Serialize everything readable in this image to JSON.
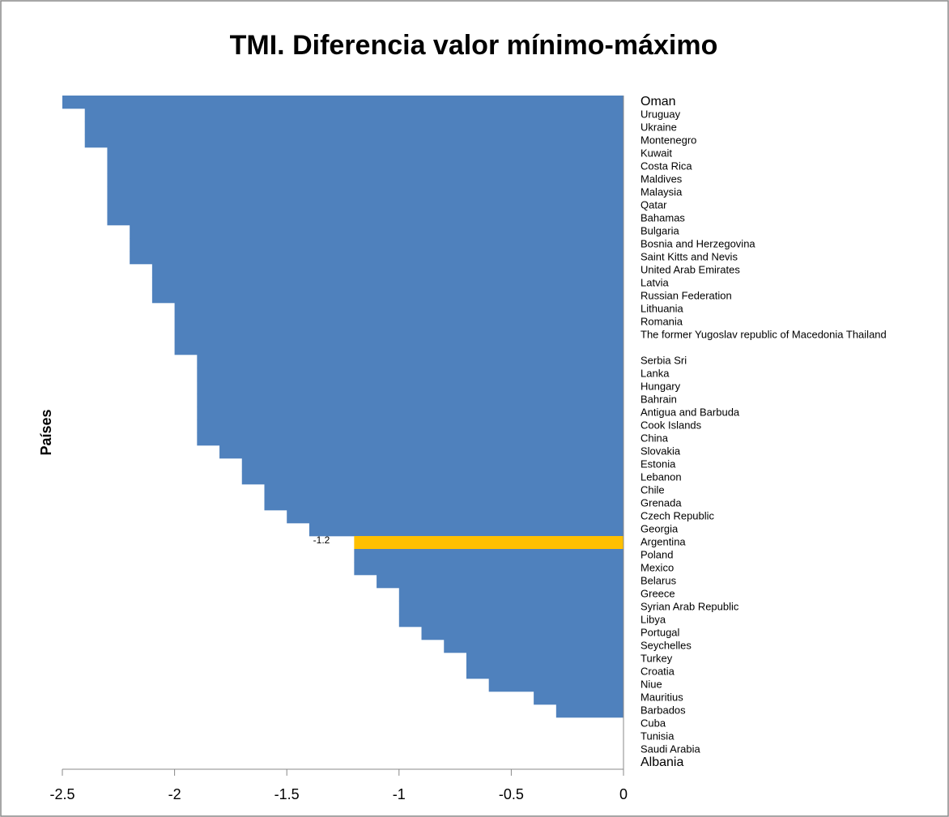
{
  "chart_data": {
    "type": "hbar",
    "title": "TMI. Diferencia valor mínimo-máximo",
    "y_label": "Países",
    "categories": [
      "Oman",
      "Uruguay",
      "Ukraine",
      "Montenegro",
      "Kuwait",
      "Costa Rica",
      "Maldives",
      "Malaysia",
      "Qatar",
      "Bahamas",
      "Bulgaria",
      "Bosnia and Herzegovina",
      "Saint Kitts and Nevis",
      "United Arab Emirates",
      "Latvia",
      "Russian Federation",
      "Lithuania",
      "Romania",
      "The former Yugoslav republic of Macedonia Thailand",
      null,
      "Serbia Sri",
      "Lanka",
      "Hungary",
      "Bahrain",
      "Antigua and Barbuda",
      "Cook Islands",
      "China",
      "Slovakia",
      "Estonia",
      "Lebanon",
      "Chile",
      "Grenada",
      "Czech Republic",
      "Georgia",
      "Argentina",
      "Poland",
      "Mexico",
      "Belarus",
      "Greece",
      "Syrian Arab Republic",
      "Libya",
      "Portugal",
      "Seychelles",
      "Turkey",
      "Croatia",
      "Niue",
      "Mauritius",
      "Barbados",
      "Cuba",
      "Tunisia",
      "Saudi Arabia",
      "Albania"
    ],
    "values": [
      -2.5,
      -2.4,
      -2.4,
      -2.4,
      -2.3,
      -2.3,
      -2.3,
      -2.3,
      -2.3,
      -2.3,
      -2.2,
      -2.2,
      -2.2,
      -2.1,
      -2.1,
      -2.1,
      -2.0,
      -2.0,
      -2.0,
      -2.0,
      -1.9,
      -1.9,
      -1.9,
      -1.9,
      -1.9,
      -1.9,
      -1.9,
      -1.8,
      -1.7,
      -1.7,
      -1.6,
      -1.6,
      -1.5,
      -1.4,
      -1.2,
      -1.2,
      -1.2,
      -1.1,
      -1.0,
      -1.0,
      -1.0,
      -0.9,
      -0.8,
      -0.7,
      -0.7,
      -0.6,
      -0.4,
      -0.3,
      0,
      0,
      0,
      0
    ],
    "value_labels": [
      null,
      null,
      null,
      null,
      null,
      null,
      null,
      null,
      null,
      null,
      null,
      null,
      null,
      null,
      null,
      null,
      null,
      null,
      null,
      null,
      null,
      null,
      null,
      null,
      null,
      null,
      null,
      null,
      null,
      null,
      null,
      null,
      null,
      null,
      "-1.2",
      null,
      null,
      null,
      null,
      null,
      null,
      null,
      null,
      null,
      null,
      null,
      null,
      null,
      null,
      null,
      null,
      null
    ],
    "bar_colors": [
      "#4f81bd",
      "#4f81bd",
      "#4f81bd",
      "#4f81bd",
      "#4f81bd",
      "#4f81bd",
      "#4f81bd",
      "#4f81bd",
      "#4f81bd",
      "#4f81bd",
      "#4f81bd",
      "#4f81bd",
      "#4f81bd",
      "#4f81bd",
      "#4f81bd",
      "#4f81bd",
      "#4f81bd",
      "#4f81bd",
      "#4f81bd",
      "#4f81bd",
      "#4f81bd",
      "#4f81bd",
      "#4f81bd",
      "#4f81bd",
      "#4f81bd",
      "#4f81bd",
      "#4f81bd",
      "#4f81bd",
      "#4f81bd",
      "#4f81bd",
      "#4f81bd",
      "#4f81bd",
      "#4f81bd",
      "#4f81bd",
      "#ffc000",
      "#4f81bd",
      "#4f81bd",
      "#4f81bd",
      "#4f81bd",
      "#4f81bd",
      "#4f81bd",
      "#4f81bd",
      "#4f81bd",
      "#4f81bd",
      "#4f81bd",
      "#4f81bd",
      "#4f81bd",
      "#4f81bd",
      "#4f81bd",
      "#4f81bd",
      "#4f81bd",
      "#4f81bd"
    ],
    "xlim": [
      -2.5,
      0
    ],
    "xticks": [
      -2.5,
      -2,
      -1.5,
      -1,
      -0.5,
      0
    ],
    "grid": false
  }
}
